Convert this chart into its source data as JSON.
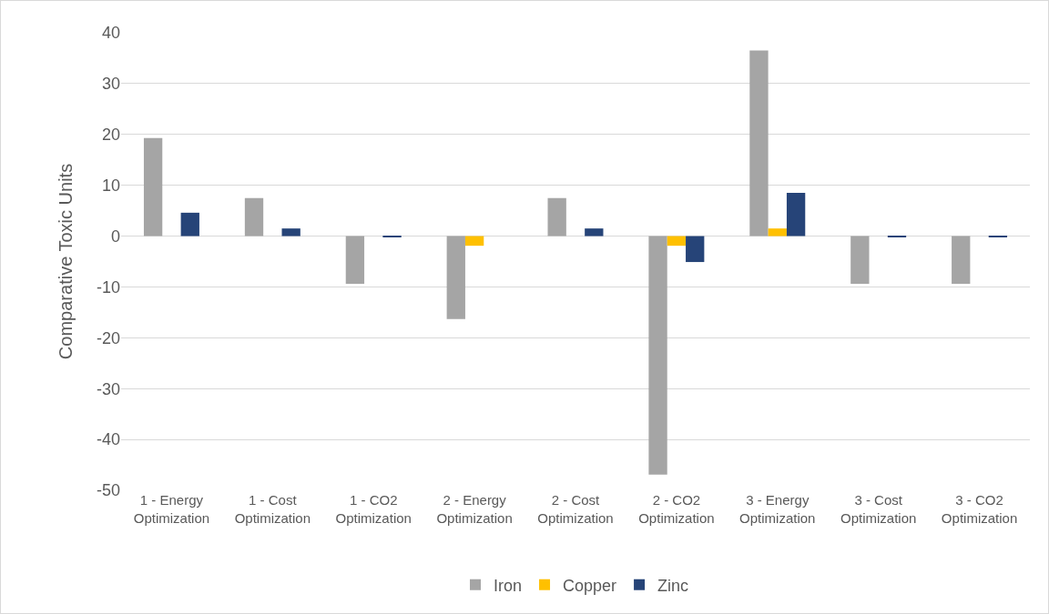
{
  "chart_data": {
    "type": "bar",
    "ylabel": "Comparative Toxic Units",
    "categories": [
      "1 - Energy Optimization",
      "1 - Cost Optimization",
      "1 - CO2 Optimization",
      "2 - Energy Optimization",
      "2 - Cost Optimization",
      "2 - CO2 Optimization",
      "3 - Energy Optimization",
      "3 - Cost Optimization",
      "3 - CO2 Optimization"
    ],
    "series": [
      {
        "name": "Iron",
        "color": "#a5a5a5",
        "values": [
          19.3,
          7.5,
          -9.4,
          -16.3,
          7.5,
          -46.9,
          36.5,
          -9.4,
          -9.4
        ]
      },
      {
        "name": "Copper",
        "color": "#ffc000",
        "values": [
          0,
          0,
          0,
          -1.9,
          0,
          -1.9,
          1.5,
          0,
          0
        ]
      },
      {
        "name": "Zinc",
        "color": "#264478",
        "values": [
          4.6,
          1.5,
          -0.2,
          0,
          1.5,
          -5.1,
          8.5,
          -0.2,
          -0.2
        ]
      }
    ],
    "ylim": [
      -50,
      40
    ],
    "yticks": [
      -50,
      -40,
      -30,
      -20,
      -10,
      0,
      10,
      20,
      30,
      40
    ],
    "grid": "y",
    "legend": "bottom"
  }
}
